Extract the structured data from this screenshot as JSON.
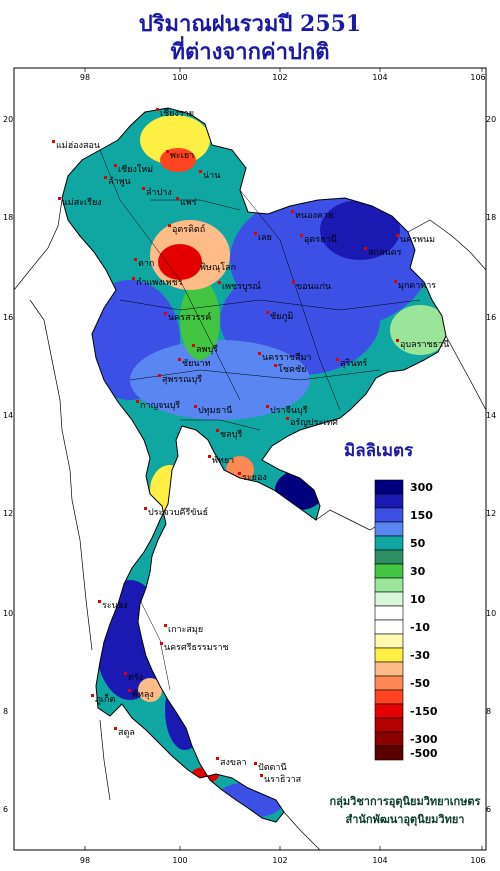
{
  "title_line1": "ปริมาณฝนรวมปี 2551",
  "title_line2": "ที่ต่างจากค่าปกติ",
  "legend": {
    "title": "มิลลิเมตร",
    "classes": [
      {
        "color": "#00007f",
        "label": "300"
      },
      {
        "color": "#1a1ab3",
        "label": ""
      },
      {
        "color": "#3c50e6",
        "label": "150"
      },
      {
        "color": "#5a86f2",
        "label": ""
      },
      {
        "color": "#10a7a3",
        "label": "50"
      },
      {
        "color": "#2d8f63",
        "label": ""
      },
      {
        "color": "#43c443",
        "label": "30"
      },
      {
        "color": "#9be59b",
        "label": ""
      },
      {
        "color": "#d9f7d9",
        "label": "10"
      },
      {
        "color": "#ffffff",
        "label": ""
      },
      {
        "color": "#ffffff",
        "label": "-10"
      },
      {
        "color": "#fffab0",
        "label": ""
      },
      {
        "color": "#ffee44",
        "label": "-30"
      },
      {
        "color": "#ffbb88",
        "label": ""
      },
      {
        "color": "#ff8855",
        "label": "-50"
      },
      {
        "color": "#ff4422",
        "label": ""
      },
      {
        "color": "#e30000",
        "label": "-150"
      },
      {
        "color": "#b30000",
        "label": ""
      },
      {
        "color": "#8a0000",
        "label": "-300"
      },
      {
        "color": "#5a0000",
        "label": "-500"
      }
    ]
  },
  "axes": {
    "lon_ticks": [
      "98",
      "100",
      "102",
      "104",
      "106"
    ],
    "lat_ticks": [
      "20",
      "18",
      "16",
      "14",
      "12",
      "10",
      "8",
      "6"
    ]
  },
  "cities": [
    {
      "name": "เชียงราย"
    },
    {
      "name": "แม่ฮ่องสอน"
    },
    {
      "name": "พะเยา"
    },
    {
      "name": "เชียงใหม่"
    },
    {
      "name": "น่าน"
    },
    {
      "name": "ลำพูน"
    },
    {
      "name": "ลำปาง"
    },
    {
      "name": "แพร่"
    },
    {
      "name": "แม่สะเรียง"
    },
    {
      "name": "หนองคาย"
    },
    {
      "name": "อุตรดิตถ์"
    },
    {
      "name": "อุดรธานี"
    },
    {
      "name": "นครพนม"
    },
    {
      "name": "เลย"
    },
    {
      "name": "สกลนคร"
    },
    {
      "name": "ตาก"
    },
    {
      "name": "พิษณุโลก"
    },
    {
      "name": "มุกดาหาร"
    },
    {
      "name": "กำแพงเพชร"
    },
    {
      "name": "ขอนแก่น"
    },
    {
      "name": "เพชรบูรณ์"
    },
    {
      "name": "ชัยภูมิ"
    },
    {
      "name": "นครสวรรค์"
    },
    {
      "name": "อุบลราชธานี"
    },
    {
      "name": "ลพบุรี"
    },
    {
      "name": "ชัยนาท"
    },
    {
      "name": "สุรินทร์"
    },
    {
      "name": "นครราชสีมา"
    },
    {
      "name": "โชคชัย"
    },
    {
      "name": "สุพรรณบุรี"
    },
    {
      "name": "กาญจนบุรี"
    },
    {
      "name": "ปทุมธานี"
    },
    {
      "name": "ปราจีนบุรี"
    },
    {
      "name": "อรัญประเทศ"
    },
    {
      "name": "ชลบุรี"
    },
    {
      "name": "พัทยา"
    },
    {
      "name": "ระยอง"
    },
    {
      "name": "ประจวบคีรีขันธ์"
    },
    {
      "name": "ระนอง"
    },
    {
      "name": "เกาะสมุย"
    },
    {
      "name": "นครศรีธรรมราช"
    },
    {
      "name": "ตรัง"
    },
    {
      "name": "พัทลุง"
    },
    {
      "name": "สงขลา"
    },
    {
      "name": "ปัตตานี"
    },
    {
      "name": "นราธิวาส"
    },
    {
      "name": "ภูเก็ต"
    },
    {
      "name": "สตูล"
    }
  ],
  "credit_line1": "กลุ่มวิชาการอุตุนิยมวิทยาเกษตร",
  "credit_line2": "สำนักพัฒนาอุตุนิยมวิทยา"
}
